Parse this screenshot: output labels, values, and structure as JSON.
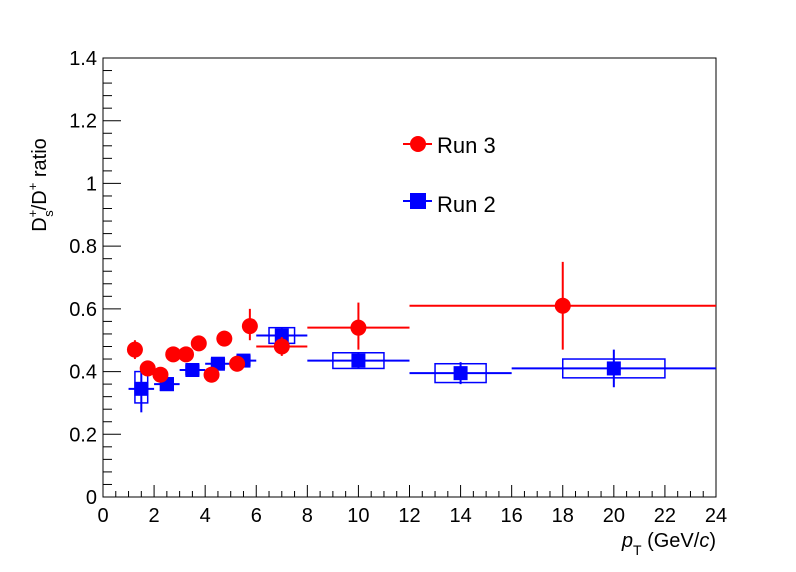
{
  "chart_data": {
    "type": "scatter",
    "xlim": [
      0,
      24
    ],
    "ylim": [
      0,
      1.4
    ],
    "grid": false,
    "legend_placement": "top-center",
    "xticks": [
      "0",
      "2",
      "4",
      "6",
      "8",
      "10",
      "12",
      "14",
      "16",
      "18",
      "20",
      "22",
      "24"
    ],
    "yticks": [
      "0",
      "0.2",
      "0.4",
      "0.6",
      "0.8",
      "1",
      "1.2",
      "1.4"
    ],
    "xlabel": {
      "main": "p",
      "sub": "T",
      "unit_open": " (GeV/",
      "unit_c": "c",
      "unit_close": ")"
    },
    "ylabel": {
      "d1": "D",
      "sup1": "+",
      "sub1": "s",
      "slash": "/D",
      "sup2": "+",
      "rest": " ratio"
    },
    "series": [
      {
        "name": "Run 3",
        "color": "#ff0000",
        "marker": "circle",
        "points": [
          {
            "x": 1.25,
            "y": 0.47,
            "xlo": 1.0,
            "xhi": 1.5,
            "ylo": 0.44,
            "yhi": 0.5
          },
          {
            "x": 1.75,
            "y": 0.41,
            "xlo": 1.5,
            "xhi": 2.0,
            "ylo": 0.39,
            "yhi": 0.43
          },
          {
            "x": 2.25,
            "y": 0.39,
            "xlo": 2.0,
            "xhi": 2.5,
            "ylo": 0.37,
            "yhi": 0.41
          },
          {
            "x": 2.75,
            "y": 0.455,
            "xlo": 2.5,
            "xhi": 3.0,
            "ylo": 0.44,
            "yhi": 0.47
          },
          {
            "x": 3.25,
            "y": 0.455,
            "xlo": 3.0,
            "xhi": 3.5,
            "ylo": 0.44,
            "yhi": 0.47
          },
          {
            "x": 3.75,
            "y": 0.49,
            "xlo": 3.5,
            "xhi": 4.0,
            "ylo": 0.47,
            "yhi": 0.51
          },
          {
            "x": 4.25,
            "y": 0.39,
            "xlo": 4.0,
            "xhi": 4.5,
            "ylo": 0.37,
            "yhi": 0.41
          },
          {
            "x": 4.75,
            "y": 0.505,
            "xlo": 4.5,
            "xhi": 5.0,
            "ylo": 0.48,
            "yhi": 0.53
          },
          {
            "x": 5.25,
            "y": 0.425,
            "xlo": 5.0,
            "xhi": 5.5,
            "ylo": 0.4,
            "yhi": 0.45
          },
          {
            "x": 5.75,
            "y": 0.545,
            "xlo": 5.5,
            "xhi": 6.0,
            "ylo": 0.5,
            "yhi": 0.6
          },
          {
            "x": 7.0,
            "y": 0.48,
            "xlo": 6.0,
            "xhi": 8.0,
            "ylo": 0.45,
            "yhi": 0.51
          },
          {
            "x": 10.0,
            "y": 0.54,
            "xlo": 8.0,
            "xhi": 12.0,
            "ylo": 0.47,
            "yhi": 0.62
          },
          {
            "x": 18.0,
            "y": 0.61,
            "xlo": 12.0,
            "xhi": 24.0,
            "ylo": 0.47,
            "yhi": 0.75
          }
        ]
      },
      {
        "name": "Run 2",
        "color": "#0000ff",
        "marker": "square",
        "points": [
          {
            "x": 1.5,
            "y": 0.345,
            "xlo": 1.0,
            "xhi": 2.0,
            "ylo": 0.27,
            "yhi": 0.4,
            "sys_lo": 0.3,
            "sys_hi": 0.4,
            "sys_w": 0.5
          },
          {
            "x": 2.5,
            "y": 0.36,
            "xlo": 2.0,
            "xhi": 3.0,
            "ylo": 0.34,
            "yhi": 0.38,
            "sys_lo": 0.34,
            "sys_hi": 0.38,
            "sys_w": 0.5
          },
          {
            "x": 3.5,
            "y": 0.405,
            "xlo": 3.0,
            "xhi": 4.0,
            "ylo": 0.39,
            "yhi": 0.42,
            "sys_lo": 0.39,
            "sys_hi": 0.42,
            "sys_w": 0.5
          },
          {
            "x": 4.5,
            "y": 0.425,
            "xlo": 4.0,
            "xhi": 5.0,
            "ylo": 0.41,
            "yhi": 0.44,
            "sys_lo": 0.41,
            "sys_hi": 0.44,
            "sys_w": 0.5
          },
          {
            "x": 5.5,
            "y": 0.435,
            "xlo": 5.0,
            "xhi": 6.0,
            "ylo": 0.42,
            "yhi": 0.45,
            "sys_lo": 0.42,
            "sys_hi": 0.45,
            "sys_w": 0.5
          },
          {
            "x": 7.0,
            "y": 0.515,
            "xlo": 6.0,
            "xhi": 8.0,
            "ylo": 0.49,
            "yhi": 0.54,
            "sys_lo": 0.49,
            "sys_hi": 0.54,
            "sys_w": 1.0
          },
          {
            "x": 10.0,
            "y": 0.435,
            "xlo": 8.0,
            "xhi": 12.0,
            "ylo": 0.41,
            "yhi": 0.46,
            "sys_lo": 0.41,
            "sys_hi": 0.46,
            "sys_w": 2.0
          },
          {
            "x": 14.0,
            "y": 0.395,
            "xlo": 12.0,
            "xhi": 16.0,
            "ylo": 0.36,
            "yhi": 0.43,
            "sys_lo": 0.365,
            "sys_hi": 0.425,
            "sys_w": 2.0
          },
          {
            "x": 20.0,
            "y": 0.41,
            "xlo": 16.0,
            "xhi": 24.0,
            "ylo": 0.35,
            "yhi": 0.47,
            "sys_lo": 0.38,
            "sys_hi": 0.44,
            "sys_w": 4.0
          }
        ]
      }
    ]
  }
}
